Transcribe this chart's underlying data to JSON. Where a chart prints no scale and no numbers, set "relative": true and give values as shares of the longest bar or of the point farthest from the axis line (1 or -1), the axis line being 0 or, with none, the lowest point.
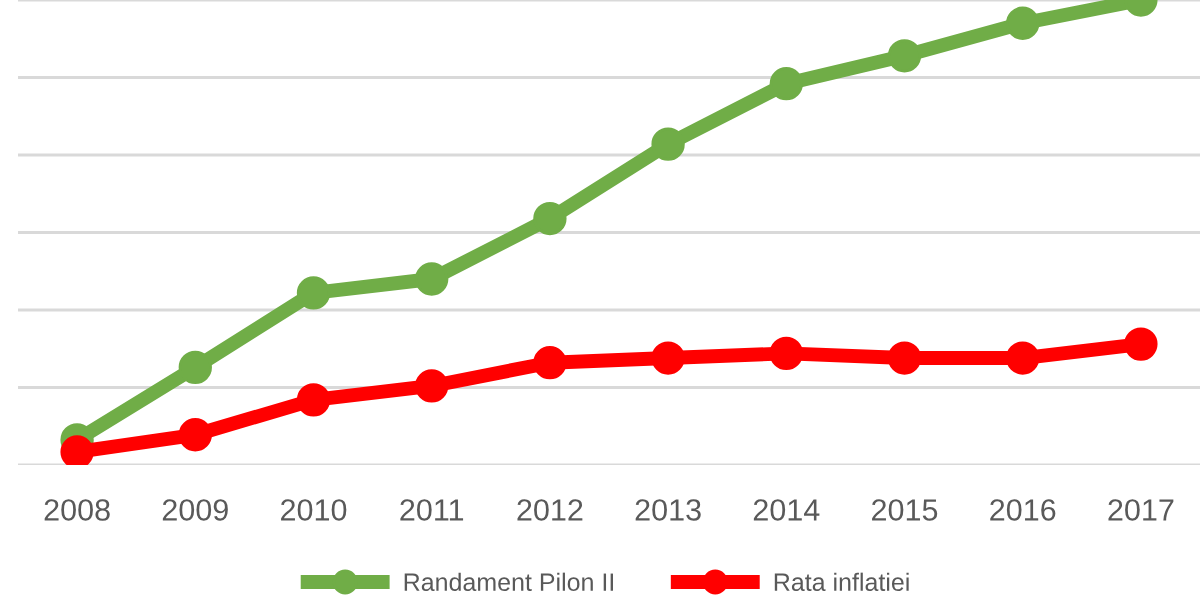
{
  "chart_data": {
    "type": "line",
    "relative": true,
    "categories": [
      "2008",
      "2009",
      "2010",
      "2011",
      "2012",
      "2013",
      "2014",
      "2015",
      "2016",
      "2017"
    ],
    "series": [
      {
        "name": "Randament Pilon II",
        "color": "#70ad47",
        "values": [
          0.054,
          0.21,
          0.37,
          0.4,
          0.53,
          0.69,
          0.82,
          0.88,
          0.95,
          1
        ]
      },
      {
        "name": "Rata inflatiei",
        "color": "#ff0000",
        "values": [
          0.028,
          0.065,
          0.14,
          0.17,
          0.22,
          0.23,
          0.24,
          0.23,
          0.23,
          0.26
        ]
      }
    ],
    "grid": "y",
    "legend": "bottom",
    "marker": "circle",
    "line_style": "solid"
  }
}
